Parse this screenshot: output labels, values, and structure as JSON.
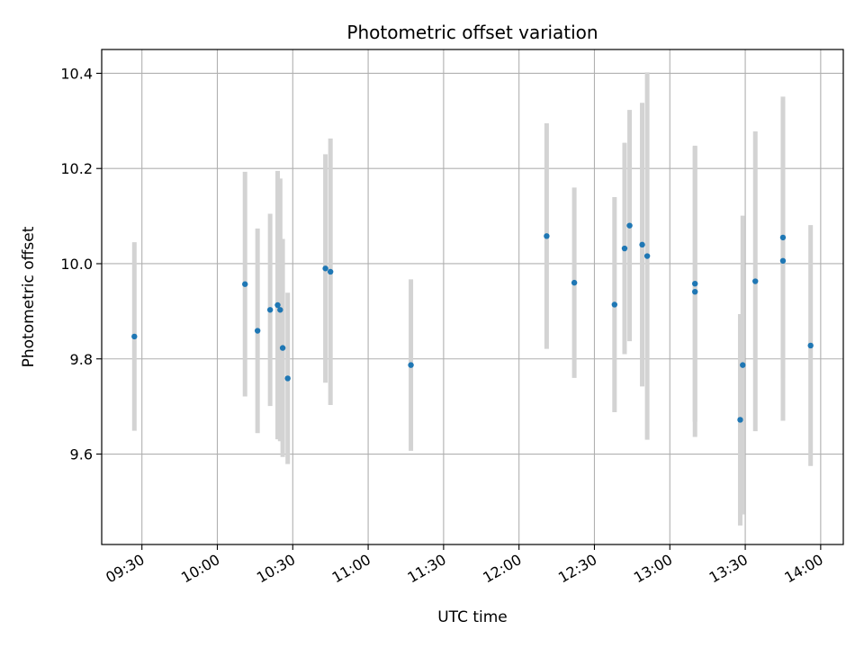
{
  "chart_data": {
    "type": "scatter",
    "title": "Photometric offset variation",
    "xlabel": "UTC time",
    "ylabel": "Photometric offset",
    "xlim": [
      "09:14",
      "14:09"
    ],
    "ylim": [
      9.41,
      10.45
    ],
    "x_ticks": [
      "09:30",
      "10:00",
      "10:30",
      "11:00",
      "11:30",
      "12:00",
      "12:30",
      "13:00",
      "13:30",
      "14:00"
    ],
    "y_ticks": [
      "9.6",
      "9.8",
      "10.0",
      "10.2",
      "10.4"
    ],
    "grid": true,
    "point_color": "#1f77b4",
    "errorbar_color": "#d3d3d3",
    "points": [
      {
        "x": "09:27",
        "y": 9.847,
        "err": 0.198
      },
      {
        "x": "10:11",
        "y": 9.957,
        "err": 0.236
      },
      {
        "x": "10:16",
        "y": 9.859,
        "err": 0.215
      },
      {
        "x": "10:21",
        "y": 9.903,
        "err": 0.202
      },
      {
        "x": "10:24",
        "y": 9.913,
        "err": 0.282
      },
      {
        "x": "10:25",
        "y": 9.903,
        "err": 0.276
      },
      {
        "x": "10:26",
        "y": 9.823,
        "err": 0.229
      },
      {
        "x": "10:28",
        "y": 9.759,
        "err": 0.18
      },
      {
        "x": "10:43",
        "y": 9.99,
        "err": 0.24
      },
      {
        "x": "10:45",
        "y": 9.983,
        "err": 0.28
      },
      {
        "x": "11:17",
        "y": 9.787,
        "err": 0.18
      },
      {
        "x": "12:11",
        "y": 10.058,
        "err": 0.237
      },
      {
        "x": "12:22",
        "y": 9.96,
        "err": 0.2
      },
      {
        "x": "12:38",
        "y": 9.914,
        "err": 0.226
      },
      {
        "x": "12:42",
        "y": 10.032,
        "err": 0.222
      },
      {
        "x": "12:44",
        "y": 10.08,
        "err": 0.243
      },
      {
        "x": "12:49",
        "y": 10.04,
        "err": 0.298
      },
      {
        "x": "12:51",
        "y": 10.016,
        "err": 0.386
      },
      {
        "x": "13:10",
        "y": 9.958,
        "err": 0.29
      },
      {
        "x": "13:10",
        "y": 9.941,
        "err": 0.305
      },
      {
        "x": "13:28",
        "y": 9.672,
        "err": 0.222
      },
      {
        "x": "13:29",
        "y": 9.787,
        "err": 0.314
      },
      {
        "x": "13:34",
        "y": 9.963,
        "err": 0.315
      },
      {
        "x": "13:45",
        "y": 10.055,
        "err": 0.296
      },
      {
        "x": "13:45",
        "y": 10.006,
        "err": 0.336
      },
      {
        "x": "13:56",
        "y": 9.828,
        "err": 0.253
      }
    ]
  }
}
